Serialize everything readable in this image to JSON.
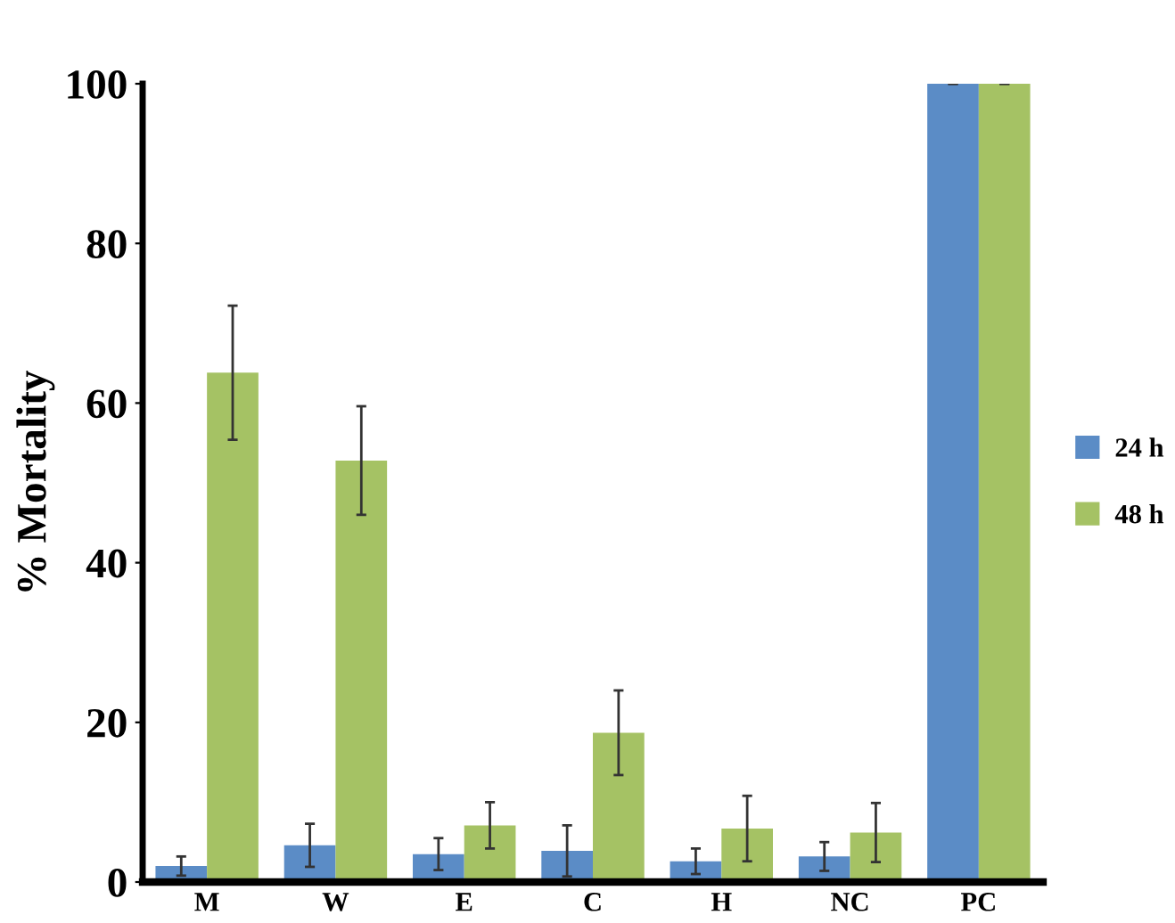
{
  "chart_data": {
    "type": "bar",
    "ylabel": "% Mortality",
    "categories": [
      "M",
      "W",
      "E",
      "C",
      "H",
      "NC",
      "PC"
    ],
    "series": [
      {
        "name": "24 h",
        "color": "#5b8cc6",
        "values": [
          2.0,
          4.6,
          3.5,
          3.9,
          2.6,
          3.2,
          100
        ],
        "errors": [
          1.2,
          2.7,
          2.0,
          3.2,
          1.6,
          1.8,
          0
        ]
      },
      {
        "name": "48 h",
        "color": "#a5c264",
        "values": [
          63.8,
          52.8,
          7.1,
          18.7,
          6.7,
          6.2,
          100
        ],
        "errors": [
          8.4,
          6.8,
          2.9,
          5.3,
          4.1,
          3.7,
          0
        ]
      }
    ],
    "ylim": [
      0,
      100
    ],
    "yticks": [
      0,
      20,
      40,
      60,
      80,
      100
    ],
    "grid": false,
    "legend": "right"
  }
}
